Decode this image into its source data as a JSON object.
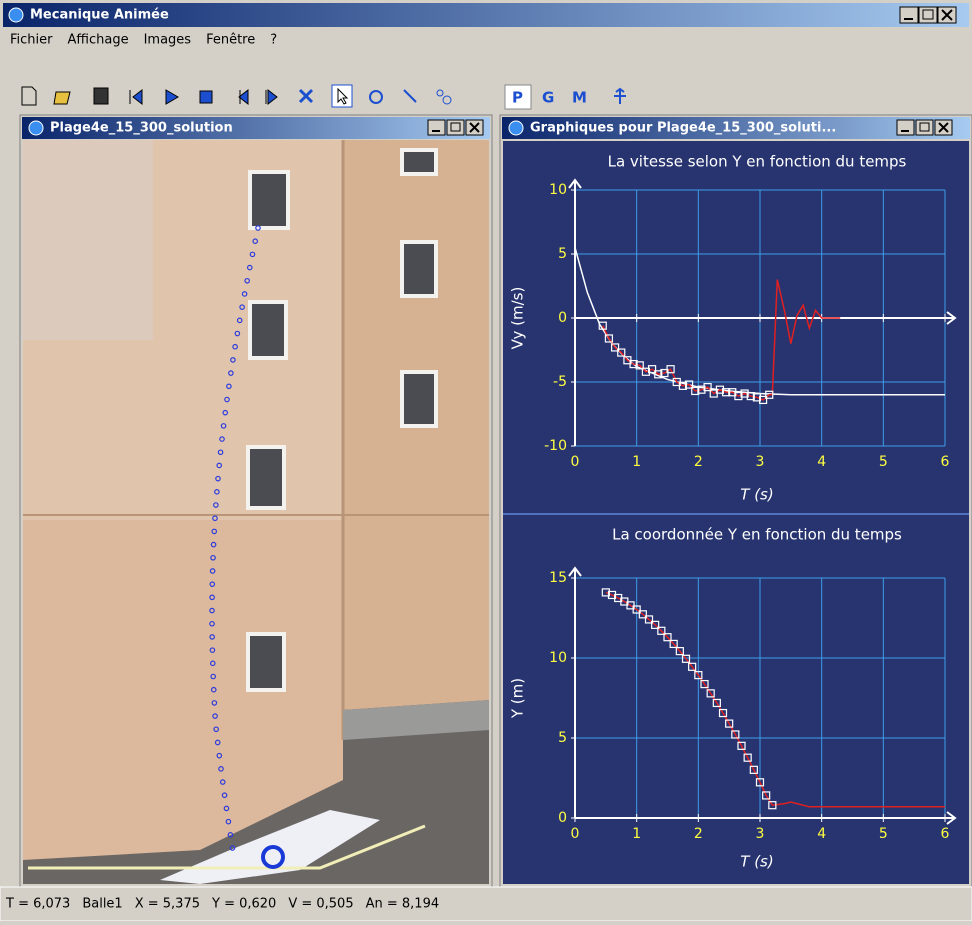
{
  "app": {
    "title": "Mecanique Animée",
    "menu": [
      "Fichier",
      "Affichage",
      "Images",
      "Fenêtre",
      "?"
    ],
    "modes": [
      "P",
      "G",
      "M"
    ],
    "video_window": {
      "title": "Plage4e_15_300_solution"
    },
    "graph_window": {
      "title": "Graphiques pour Plage4e_15_300_soluti..."
    },
    "status": [
      "T = 6,073",
      "Balle1",
      "X = 5,375",
      "Y = 0,620",
      "V = 0,505",
      "An = 8,194"
    ]
  },
  "chart_data": [
    {
      "type": "line",
      "title": "La vitesse selon Y en fonction du temps",
      "x_label": "T (s)",
      "y_label": "Vy (m/s)",
      "xlim": [
        0,
        6
      ],
      "ylim": [
        -10,
        10
      ],
      "xticks": [
        0,
        1,
        2,
        3,
        4,
        5,
        6
      ],
      "yticks": [
        -10,
        -5,
        0,
        5,
        10
      ],
      "grid": true,
      "series": [
        {
          "color": "#ffffff",
          "style": "line",
          "x": [
            0,
            0.2,
            0.4,
            0.6,
            0.8,
            1,
            1.5,
            2,
            2.5,
            3,
            3.5,
            4,
            5,
            6
          ],
          "values": [
            5.5,
            2,
            -0.5,
            -2,
            -3,
            -3.8,
            -4.8,
            -5.4,
            -5.7,
            -5.9,
            -6,
            -6,
            -6,
            -6
          ]
        },
        {
          "color": "#e02020",
          "style": "line",
          "x": [
            0.45,
            0.55,
            0.65,
            0.75,
            0.85,
            0.95,
            1.05,
            1.15,
            1.25,
            1.35,
            1.45,
            1.55,
            1.65,
            1.75,
            1.85,
            1.95,
            2.05,
            2.15,
            2.25,
            2.35,
            2.45,
            2.55,
            2.65,
            2.75,
            2.85,
            2.95,
            3.05,
            3.15,
            3.2,
            3.28,
            3.4,
            3.5,
            3.6,
            3.7,
            3.8,
            3.9,
            4.0,
            4.3
          ],
          "values": [
            -0.6,
            -1.6,
            -2.3,
            -2.7,
            -3.3,
            -3.6,
            -3.7,
            -4.2,
            -4.0,
            -4.4,
            -4.3,
            -4.0,
            -5.0,
            -5.3,
            -5.2,
            -5.7,
            -5.6,
            -5.4,
            -5.9,
            -5.6,
            -5.8,
            -5.8,
            -6.1,
            -5.9,
            -6.1,
            -6.2,
            -6.4,
            -6.0,
            -6.0,
            3.0,
            0.5,
            -2.0,
            0.2,
            1.0,
            -0.8,
            0.6,
            0,
            0
          ]
        },
        {
          "color": "#ffffff",
          "style": "markers",
          "x": [
            0.45,
            0.55,
            0.65,
            0.75,
            0.85,
            0.95,
            1.05,
            1.15,
            1.25,
            1.35,
            1.45,
            1.55,
            1.65,
            1.75,
            1.85,
            1.95,
            2.05,
            2.15,
            2.25,
            2.35,
            2.45,
            2.55,
            2.65,
            2.75,
            2.85,
            2.95,
            3.05,
            3.15
          ],
          "values": [
            -0.6,
            -1.6,
            -2.3,
            -2.7,
            -3.3,
            -3.6,
            -3.7,
            -4.2,
            -4.0,
            -4.4,
            -4.3,
            -4.0,
            -5.0,
            -5.3,
            -5.2,
            -5.7,
            -5.6,
            -5.4,
            -5.9,
            -5.6,
            -5.8,
            -5.8,
            -6.1,
            -5.9,
            -6.1,
            -6.2,
            -6.4,
            -6.0
          ]
        }
      ]
    },
    {
      "type": "line",
      "title": "La coordonnée Y en fonction du temps",
      "x_label": "T (s)",
      "y_label": "Y (m)",
      "xlim": [
        0,
        6
      ],
      "ylim": [
        0,
        15
      ],
      "xticks": [
        0,
        1,
        2,
        3,
        4,
        5,
        6
      ],
      "yticks": [
        0,
        5,
        10,
        15
      ],
      "grid": true,
      "series": [
        {
          "color": "#e02020",
          "style": "line",
          "x": [
            0.5,
            0.6,
            0.7,
            0.8,
            0.9,
            1.0,
            1.1,
            1.2,
            1.3,
            1.4,
            1.5,
            1.6,
            1.7,
            1.8,
            1.9,
            2.0,
            2.1,
            2.2,
            2.3,
            2.4,
            2.5,
            2.6,
            2.7,
            2.8,
            2.9,
            3.0,
            3.1,
            3.2,
            3.4,
            3.5,
            3.6,
            3.8,
            6.0
          ],
          "values": [
            14.1,
            13.94,
            13.75,
            13.53,
            13.29,
            13.03,
            12.73,
            12.41,
            12.07,
            11.7,
            11.3,
            10.88,
            10.43,
            9.95,
            9.45,
            8.93,
            8.37,
            7.79,
            7.19,
            6.56,
            5.9,
            5.22,
            4.51,
            3.77,
            3.01,
            2.23,
            1.41,
            0.8,
            0.9,
            1.0,
            0.9,
            0.7,
            0.7
          ]
        },
        {
          "color": "#ffffff",
          "style": "markers",
          "x": [
            0.5,
            0.6,
            0.7,
            0.8,
            0.9,
            1.0,
            1.1,
            1.2,
            1.3,
            1.4,
            1.5,
            1.6,
            1.7,
            1.8,
            1.9,
            2.0,
            2.1,
            2.2,
            2.3,
            2.4,
            2.5,
            2.6,
            2.7,
            2.8,
            2.9,
            3.0,
            3.1,
            3.2
          ],
          "values": [
            14.1,
            13.94,
            13.75,
            13.53,
            13.29,
            13.03,
            12.73,
            12.41,
            12.07,
            11.7,
            11.3,
            10.88,
            10.43,
            9.95,
            9.45,
            8.93,
            8.37,
            7.79,
            7.19,
            6.56,
            5.9,
            5.22,
            4.51,
            3.77,
            3.01,
            2.23,
            1.41,
            0.8
          ]
        }
      ]
    }
  ]
}
